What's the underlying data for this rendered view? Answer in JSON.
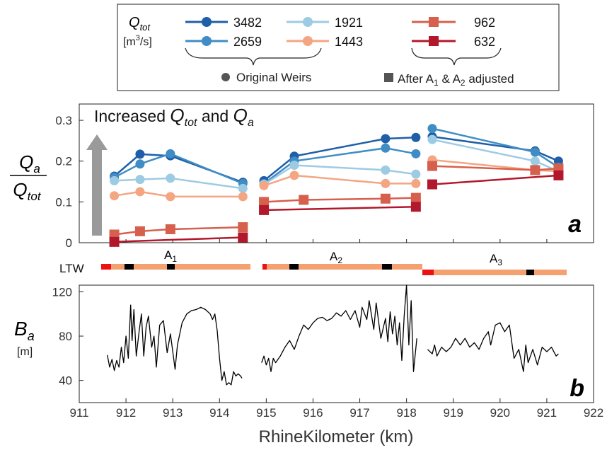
{
  "legend": {
    "q_label": "Q",
    "q_sub": "tot",
    "unit_open": "[m",
    "unit_sup": "3",
    "unit_close": "/s]",
    "original_weirs": "Original Weirs",
    "after_adjusted": "After A",
    "after_sub1": "1",
    "after_amp": " & A",
    "after_sub2": "2",
    "after_tail": " adjusted"
  },
  "top_panel": {
    "annotation_prefix": "Increased ",
    "annotation_q1": "Q",
    "annotation_q1_sub": "tot",
    "annotation_and": " and ",
    "annotation_q2": "Q",
    "annotation_q2_sub": "a",
    "ylabel_num": "Q",
    "ylabel_num_sub": "a",
    "ylabel_den": "Q",
    "ylabel_den_sub": "tot",
    "panel_letter": "a",
    "yticks": [
      "0",
      "0.1",
      "0.2",
      "0.3"
    ]
  },
  "ltw": {
    "label": "LTW",
    "sections": [
      {
        "name": "A",
        "sub": "1"
      },
      {
        "name": "A",
        "sub": "2"
      },
      {
        "name": "A",
        "sub": "3"
      }
    ],
    "color_bar": "#F4A070",
    "color_red": "#EE1111",
    "color_black": "#000000"
  },
  "bottom_panel": {
    "ylabel": "B",
    "ylabel_sub": "a",
    "ylabel_unit": "[m]",
    "panel_letter": "b",
    "yticks": [
      "40",
      "80",
      "120"
    ],
    "xticks": [
      "911",
      "912",
      "913",
      "914",
      "915",
      "916",
      "917",
      "918",
      "919",
      "920",
      "921",
      "922"
    ],
    "xlabel": "RhineKilometer (km)"
  },
  "chart_data": [
    {
      "type": "line",
      "panel": "a",
      "ylim": [
        0,
        0.34
      ],
      "xlim": [
        911,
        922
      ],
      "yticks": [
        0,
        0.1,
        0.2,
        0.3
      ],
      "series": [
        {
          "name": "3482",
          "color": "#1F5FA8",
          "marker": "circle",
          "segments": [
            [
              [
                911.75,
                0.163
              ],
              [
                912.3,
                0.217
              ],
              [
                912.95,
                0.213
              ],
              [
                914.5,
                0.148
              ]
            ],
            [
              [
                914.95,
                0.152
              ],
              [
                915.6,
                0.212
              ],
              [
                917.55,
                0.255
              ],
              [
                918.2,
                0.258
              ]
            ],
            [
              [
                918.55,
                0.26
              ],
              [
                920.75,
                0.225
              ],
              [
                921.25,
                0.2
              ]
            ]
          ]
        },
        {
          "name": "2659",
          "color": "#3F8DC4",
          "marker": "circle",
          "segments": [
            [
              [
                911.75,
                0.16
              ],
              [
                912.3,
                0.193
              ],
              [
                912.95,
                0.218
              ],
              [
                914.5,
                0.145
              ]
            ],
            [
              [
                914.95,
                0.145
              ],
              [
                915.6,
                0.2
              ],
              [
                917.55,
                0.232
              ],
              [
                918.2,
                0.218
              ]
            ],
            [
              [
                918.55,
                0.28
              ],
              [
                920.75,
                0.222
              ],
              [
                921.25,
                0.185
              ]
            ]
          ]
        },
        {
          "name": "1921",
          "color": "#9DCBE3",
          "marker": "circle",
          "segments": [
            [
              [
                911.75,
                0.152
              ],
              [
                912.3,
                0.155
              ],
              [
                912.95,
                0.158
              ],
              [
                914.5,
                0.133
              ]
            ],
            [
              [
                914.95,
                0.143
              ],
              [
                915.6,
                0.19
              ],
              [
                917.55,
                0.178
              ],
              [
                918.2,
                0.168
              ]
            ],
            [
              [
                918.55,
                0.253
              ],
              [
                920.75,
                0.2
              ],
              [
                921.25,
                0.175
              ]
            ]
          ]
        },
        {
          "name": "1443",
          "color": "#F4A582",
          "marker": "circle",
          "segments": [
            [
              [
                911.75,
                0.115
              ],
              [
                912.3,
                0.125
              ],
              [
                912.95,
                0.113
              ],
              [
                914.5,
                0.113
              ]
            ],
            [
              [
                914.95,
                0.14
              ],
              [
                915.6,
                0.165
              ],
              [
                917.55,
                0.145
              ],
              [
                918.2,
                0.145
              ]
            ],
            [
              [
                918.55,
                0.203
              ],
              [
                920.75,
                0.178
              ],
              [
                921.25,
                0.175
              ]
            ]
          ]
        },
        {
          "name": "962",
          "color": "#D6604D",
          "marker": "square",
          "segments": [
            [
              [
                911.75,
                0.02
              ],
              [
                912.3,
                0.028
              ],
              [
                912.95,
                0.033
              ],
              [
                914.5,
                0.038
              ]
            ],
            [
              [
                914.95,
                0.1
              ],
              [
                915.8,
                0.105
              ],
              [
                917.55,
                0.108
              ],
              [
                918.2,
                0.11
              ]
            ],
            [
              [
                918.55,
                0.188
              ],
              [
                920.75,
                0.178
              ],
              [
                921.25,
                0.182
              ]
            ]
          ]
        },
        {
          "name": "632",
          "color": "#B2182B",
          "marker": "square",
          "segments": [
            [
              [
                911.75,
                0.002
              ],
              [
                914.5,
                0.013
              ]
            ],
            [
              [
                914.95,
                0.08
              ],
              [
                918.2,
                0.088
              ]
            ],
            [
              [
                918.55,
                0.143
              ],
              [
                921.25,
                0.165
              ]
            ]
          ]
        }
      ]
    },
    {
      "type": "line",
      "panel": "b",
      "ylabel": "Ba [m]",
      "xlabel": "RhineKilometer (km)",
      "xlim": [
        911,
        922
      ],
      "ylim": [
        20,
        126
      ],
      "segments": [
        [
          [
            911.6,
            63
          ],
          [
            911.65,
            52
          ],
          [
            911.7,
            59
          ],
          [
            911.75,
            49
          ],
          [
            911.8,
            58
          ],
          [
            911.85,
            52
          ],
          [
            911.9,
            70
          ],
          [
            911.95,
            56
          ],
          [
            912.0,
            80
          ],
          [
            912.05,
            60
          ],
          [
            912.1,
            108
          ],
          [
            912.13,
            76
          ],
          [
            912.17,
            104
          ],
          [
            912.22,
            62
          ],
          [
            912.28,
            84
          ],
          [
            912.33,
            100
          ],
          [
            912.38,
            62
          ],
          [
            912.43,
            88
          ],
          [
            912.48,
            98
          ],
          [
            912.55,
            70
          ],
          [
            912.6,
            80
          ],
          [
            912.65,
            52
          ],
          [
            912.72,
            90
          ],
          [
            912.8,
            94
          ],
          [
            912.88,
            65
          ],
          [
            912.95,
            82
          ],
          [
            913.05,
            50
          ],
          [
            913.1,
            72
          ],
          [
            913.2,
            92
          ],
          [
            913.3,
            100
          ],
          [
            913.4,
            103
          ],
          [
            913.5,
            104
          ],
          [
            913.6,
            106
          ],
          [
            913.7,
            104
          ],
          [
            913.8,
            100
          ],
          [
            913.85,
            95
          ],
          [
            913.9,
            100
          ],
          [
            913.95,
            85
          ],
          [
            914.0,
            60
          ],
          [
            914.05,
            40
          ],
          [
            914.1,
            48
          ],
          [
            914.15,
            36
          ],
          [
            914.2,
            38
          ],
          [
            914.25,
            36
          ],
          [
            914.3,
            48
          ],
          [
            914.35,
            44
          ],
          [
            914.4,
            46
          ],
          [
            914.45,
            44
          ],
          [
            914.48,
            42
          ]
        ],
        [
          [
            914.9,
            56
          ],
          [
            914.95,
            62
          ],
          [
            915.0,
            54
          ],
          [
            915.05,
            60
          ],
          [
            915.1,
            48
          ],
          [
            915.15,
            60
          ],
          [
            915.2,
            56
          ],
          [
            915.3,
            62
          ],
          [
            915.4,
            70
          ],
          [
            915.5,
            76
          ],
          [
            915.6,
            68
          ],
          [
            915.7,
            80
          ],
          [
            915.8,
            90
          ],
          [
            915.9,
            86
          ],
          [
            916.0,
            92
          ],
          [
            916.1,
            96
          ],
          [
            916.2,
            97
          ],
          [
            916.3,
            94
          ],
          [
            916.4,
            96
          ],
          [
            916.5,
            101
          ],
          [
            916.6,
            98
          ],
          [
            916.7,
            103
          ],
          [
            916.8,
            95
          ],
          [
            916.9,
            103
          ],
          [
            917.0,
            88
          ],
          [
            917.05,
            106
          ],
          [
            917.15,
            95
          ],
          [
            917.2,
            112
          ],
          [
            917.3,
            86
          ],
          [
            917.35,
            110
          ],
          [
            917.45,
            78
          ],
          [
            917.55,
            96
          ],
          [
            917.6,
            75
          ],
          [
            917.65,
            102
          ],
          [
            917.7,
            82
          ],
          [
            917.75,
            98
          ],
          [
            917.8,
            72
          ],
          [
            917.85,
            92
          ],
          [
            917.9,
            58
          ],
          [
            917.95,
            98
          ],
          [
            918.0,
            126
          ],
          [
            918.05,
            72
          ],
          [
            918.1,
            112
          ],
          [
            918.15,
            48
          ],
          [
            918.22,
            78
          ]
        ],
        [
          [
            918.45,
            68
          ],
          [
            918.55,
            64
          ],
          [
            918.6,
            72
          ],
          [
            918.65,
            62
          ],
          [
            918.75,
            70
          ],
          [
            918.85,
            66
          ],
          [
            918.95,
            70
          ],
          [
            919.05,
            78
          ],
          [
            919.15,
            72
          ],
          [
            919.25,
            78
          ],
          [
            919.35,
            70
          ],
          [
            919.45,
            74
          ],
          [
            919.55,
            68
          ],
          [
            919.65,
            78
          ],
          [
            919.75,
            84
          ],
          [
            919.8,
            72
          ],
          [
            919.9,
            90
          ],
          [
            920.0,
            92
          ],
          [
            920.1,
            84
          ],
          [
            920.2,
            90
          ],
          [
            920.3,
            60
          ],
          [
            920.4,
            68
          ],
          [
            920.5,
            48
          ],
          [
            920.55,
            72
          ],
          [
            920.6,
            56
          ],
          [
            920.7,
            68
          ],
          [
            920.8,
            54
          ],
          [
            920.9,
            70
          ],
          [
            921.0,
            66
          ],
          [
            921.1,
            70
          ],
          [
            921.2,
            62
          ],
          [
            921.25,
            64
          ]
        ]
      ]
    }
  ]
}
